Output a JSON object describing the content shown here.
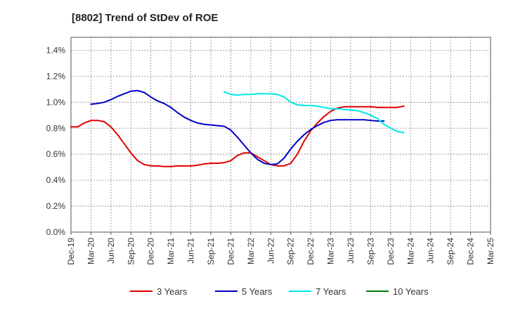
{
  "chart_data": {
    "type": "line",
    "title": "[8802]  Trend of StDev of ROE",
    "xlabel": "",
    "ylabel": "",
    "x_tick_labels": [
      "Dec-19",
      "Mar-20",
      "Jun-20",
      "Sep-20",
      "Dec-20",
      "Mar-21",
      "Jun-21",
      "Sep-21",
      "Dec-21",
      "Mar-22",
      "Jun-22",
      "Sep-22",
      "Dec-22",
      "Mar-23",
      "Jun-23",
      "Sep-23",
      "Dec-23",
      "Mar-24",
      "Jun-24",
      "Sep-24",
      "Dec-24",
      "Mar-25"
    ],
    "y_tick_labels": [
      "0.0%",
      "0.2%",
      "0.4%",
      "0.6%",
      "0.8%",
      "1.0%",
      "1.2%",
      "1.4%"
    ],
    "ylim": [
      0,
      1.5
    ],
    "grid": true,
    "legend_position": "bottom",
    "series": [
      {
        "name": "3 Years",
        "color": "#e00000",
        "values": [
          [
            0,
            0.81
          ],
          [
            1,
            0.81
          ],
          [
            2,
            0.84
          ],
          [
            3,
            0.86
          ],
          [
            4,
            0.86
          ],
          [
            5,
            0.85
          ],
          [
            6,
            0.81
          ],
          [
            7,
            0.75
          ],
          [
            8,
            0.68
          ],
          [
            9,
            0.61
          ],
          [
            10,
            0.55
          ],
          [
            11,
            0.52
          ],
          [
            12,
            0.51
          ],
          [
            13,
            0.51
          ],
          [
            14,
            0.505
          ],
          [
            15,
            0.505
          ],
          [
            16,
            0.51
          ],
          [
            17,
            0.51
          ],
          [
            18,
            0.51
          ],
          [
            19,
            0.515
          ],
          [
            20,
            0.525
          ],
          [
            21,
            0.53
          ],
          [
            22,
            0.53
          ],
          [
            23,
            0.535
          ],
          [
            24,
            0.55
          ],
          [
            25,
            0.59
          ],
          [
            26,
            0.61
          ],
          [
            27,
            0.61
          ],
          [
            28,
            0.58
          ],
          [
            29,
            0.55
          ],
          [
            30,
            0.52
          ],
          [
            31,
            0.51
          ],
          [
            32,
            0.51
          ],
          [
            33,
            0.53
          ],
          [
            34,
            0.6
          ],
          [
            35,
            0.7
          ],
          [
            36,
            0.78
          ],
          [
            37,
            0.84
          ],
          [
            38,
            0.89
          ],
          [
            39,
            0.93
          ],
          [
            40,
            0.955
          ],
          [
            41,
            0.965
          ],
          [
            42,
            0.965
          ],
          [
            43,
            0.965
          ],
          [
            44,
            0.965
          ],
          [
            45,
            0.965
          ],
          [
            46,
            0.96
          ],
          [
            47,
            0.96
          ],
          [
            48,
            0.96
          ],
          [
            49,
            0.96
          ],
          [
            50,
            0.97
          ]
        ]
      },
      {
        "name": "5 Years",
        "color": "#0000c8",
        "values": [
          [
            3,
            0.985
          ],
          [
            4,
            0.99
          ],
          [
            5,
            1.0
          ],
          [
            6,
            1.02
          ],
          [
            7,
            1.045
          ],
          [
            8,
            1.065
          ],
          [
            9,
            1.085
          ],
          [
            10,
            1.09
          ],
          [
            11,
            1.075
          ],
          [
            12,
            1.04
          ],
          [
            13,
            1.01
          ],
          [
            14,
            0.99
          ],
          [
            15,
            0.96
          ],
          [
            16,
            0.92
          ],
          [
            17,
            0.885
          ],
          [
            18,
            0.86
          ],
          [
            19,
            0.84
          ],
          [
            20,
            0.83
          ],
          [
            21,
            0.825
          ],
          [
            22,
            0.82
          ],
          [
            23,
            0.815
          ],
          [
            24,
            0.785
          ],
          [
            25,
            0.73
          ],
          [
            26,
            0.67
          ],
          [
            27,
            0.61
          ],
          [
            28,
            0.56
          ],
          [
            29,
            0.53
          ],
          [
            30,
            0.52
          ],
          [
            31,
            0.525
          ],
          [
            32,
            0.57
          ],
          [
            33,
            0.64
          ],
          [
            34,
            0.7
          ],
          [
            35,
            0.75
          ],
          [
            36,
            0.79
          ],
          [
            37,
            0.82
          ],
          [
            38,
            0.845
          ],
          [
            39,
            0.86
          ],
          [
            40,
            0.865
          ],
          [
            41,
            0.865
          ],
          [
            42,
            0.865
          ],
          [
            43,
            0.865
          ],
          [
            44,
            0.865
          ],
          [
            45,
            0.86
          ],
          [
            46,
            0.855
          ],
          [
            47,
            0.855
          ]
        ]
      },
      {
        "name": "7 Years",
        "color": "#00e8e8",
        "values": [
          [
            23,
            1.08
          ],
          [
            24,
            1.06
          ],
          [
            25,
            1.055
          ],
          [
            26,
            1.06
          ],
          [
            27,
            1.06
          ],
          [
            28,
            1.065
          ],
          [
            29,
            1.065
          ],
          [
            30,
            1.065
          ],
          [
            31,
            1.06
          ],
          [
            32,
            1.04
          ],
          [
            33,
            1.0
          ],
          [
            34,
            0.98
          ],
          [
            35,
            0.975
          ],
          [
            36,
            0.975
          ],
          [
            37,
            0.97
          ],
          [
            38,
            0.96
          ],
          [
            39,
            0.95
          ],
          [
            40,
            0.95
          ],
          [
            41,
            0.945
          ],
          [
            42,
            0.94
          ],
          [
            43,
            0.935
          ],
          [
            44,
            0.92
          ],
          [
            45,
            0.9
          ],
          [
            46,
            0.875
          ],
          [
            47,
            0.83
          ],
          [
            48,
            0.8
          ],
          [
            49,
            0.775
          ],
          [
            50,
            0.765
          ]
        ]
      },
      {
        "name": "10 Years",
        "color": "#008000",
        "values": []
      }
    ]
  }
}
